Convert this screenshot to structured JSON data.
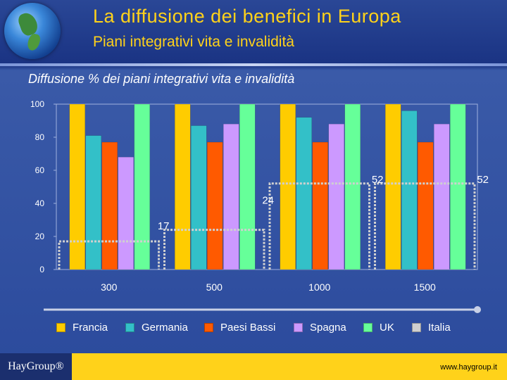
{
  "header": {
    "title": "La diffusione dei benefici in Europa",
    "subtitle": "Piani integrativi vita e invalidità"
  },
  "footer": {
    "logo_text": "HayGroup®",
    "url": "www.haygroup.it"
  },
  "colors": {
    "Francia": "#ffcc00",
    "Germania": "#33c0c8",
    "Paesi Bassi": "#ff5a00",
    "Spagna": "#cc99ff",
    "UK": "#66ff99",
    "Italia": "#d0d0d0"
  },
  "chart_data": {
    "type": "bar",
    "title": "Diffusione % dei piani integrativi vita e invalidità",
    "categories": [
      "300",
      "500",
      "1000",
      "1500"
    ],
    "ylim": [
      0,
      100
    ],
    "yticks": [
      "0",
      "20",
      "40",
      "60",
      "80",
      "100"
    ],
    "grid": false,
    "legend_position": "bottom",
    "series": [
      {
        "name": "Francia",
        "values": [
          100,
          100,
          100,
          100
        ]
      },
      {
        "name": "Germania",
        "values": [
          81,
          87,
          92,
          96
        ]
      },
      {
        "name": "Paesi Bassi",
        "values": [
          77,
          77,
          77,
          77
        ]
      },
      {
        "name": "Spagna",
        "values": [
          68,
          88,
          88,
          88
        ]
      },
      {
        "name": "UK",
        "values": [
          100,
          100,
          100,
          100
        ]
      },
      {
        "name": "Italia",
        "values": [
          17,
          24,
          52,
          52
        ],
        "style": "dashed-outline"
      }
    ],
    "data_labels": [
      {
        "series": "Italia",
        "category": "300",
        "text": "17"
      },
      {
        "series": "Italia",
        "category": "500",
        "text": "24"
      },
      {
        "series": "Italia",
        "category": "1000",
        "text": "52"
      },
      {
        "series": "Italia",
        "category": "1500",
        "text": "52"
      }
    ]
  }
}
